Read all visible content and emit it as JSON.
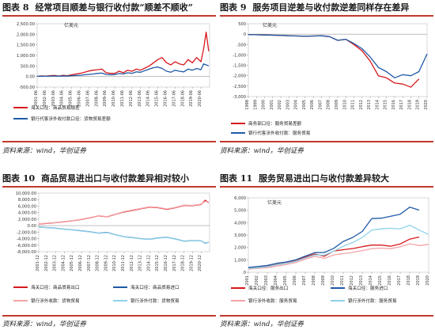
{
  "source_label": "资料来源：wind，华创证券",
  "chart_data": [
    {
      "id": "fig8",
      "type": "line",
      "figure_label": "图表 8",
      "title": "经常项目顺差与银行收付款“顺差不顺收”",
      "unit": "亿美元",
      "ylim": [
        -500,
        2500
      ],
      "yticks": [
        "2,500.00",
        "2,000.00",
        "1,500.00",
        "1,000.00",
        "500.00",
        "0.00",
        "-500.00"
      ],
      "ytick_values": [
        2500,
        2000,
        1500,
        1000,
        500,
        0,
        -500
      ],
      "xticks": [
        "2001-06",
        "2002-06",
        "2003-06",
        "2004-06",
        "2005-06",
        "2006-06",
        "2007-06",
        "2008-06",
        "2009-06",
        "2010-06",
        "2011-06",
        "2012-06",
        "2013-06",
        "2014-06",
        "2015-06",
        "2016-06",
        "2017-06",
        "2018-06",
        "2019-06",
        "2020-06"
      ],
      "x_start": 2001.0,
      "x_end": 2021.0,
      "series": [
        {
          "name": "海关口径：商品贸易顺差",
          "color": "#d7191c",
          "x": [
            2001,
            2001.5,
            2002,
            2002.5,
            2003,
            2003.5,
            2004,
            2004.5,
            2005,
            2005.5,
            2006,
            2006.5,
            2007,
            2007.5,
            2008,
            2008.5,
            2009,
            2009.5,
            2010,
            2010.5,
            2011,
            2011.5,
            2012,
            2012.5,
            2013,
            2013.5,
            2014,
            2014.5,
            2015,
            2015.5,
            2016,
            2016.5,
            2017,
            2017.5,
            2018,
            2018.5,
            2019,
            2019.5,
            2020,
            2020.3,
            2020.6,
            2020.9
          ],
          "values": [
            10,
            30,
            20,
            40,
            50,
            20,
            60,
            40,
            80,
            120,
            150,
            200,
            260,
            300,
            320,
            350,
            180,
            150,
            150,
            250,
            180,
            300,
            250,
            350,
            300,
            400,
            500,
            650,
            800,
            900,
            650,
            550,
            700,
            600,
            550,
            800,
            650,
            900,
            700,
            1300,
            2100,
            1200
          ]
        },
        {
          "name": "银行代客涉外收付款口径：货物贸易差额",
          "color": "#1f5aa6",
          "x": [
            2001,
            2001.5,
            2002,
            2002.5,
            2003,
            2003.5,
            2004,
            2004.5,
            2005,
            2005.5,
            2006,
            2006.5,
            2007,
            2007.5,
            2008,
            2008.5,
            2009,
            2009.5,
            2010,
            2010.5,
            2011,
            2011.5,
            2012,
            2012.5,
            2013,
            2013.5,
            2014,
            2014.5,
            2015,
            2015.5,
            2016,
            2016.5,
            2017,
            2017.5,
            2018,
            2018.5,
            2019,
            2019.5,
            2020,
            2020.3,
            2020.6,
            2020.9
          ],
          "values": [
            5,
            15,
            10,
            20,
            25,
            15,
            30,
            20,
            40,
            50,
            60,
            80,
            100,
            120,
            150,
            160,
            100,
            80,
            90,
            140,
            120,
            180,
            150,
            220,
            200,
            280,
            350,
            420,
            450,
            380,
            250,
            200,
            300,
            250,
            220,
            350,
            300,
            380,
            320,
            600,
            550,
            500
          ]
        }
      ]
    },
    {
      "id": "fig9",
      "type": "line",
      "figure_label": "图表 9",
      "title": "服务项目逆差与收付款逆差同样存在差异",
      "unit": "亿美元",
      "ylim": [
        -3000,
        500
      ],
      "yticks": [
        "500",
        "0",
        "-500",
        "-1,000",
        "-1,500",
        "-2,000",
        "-2,500",
        "-3,000"
      ],
      "ytick_values": [
        500,
        0,
        -500,
        -1000,
        -1500,
        -2000,
        -2500,
        -3000
      ],
      "xticks": [
        "1998",
        "1999",
        "2000",
        "2001",
        "2002",
        "2003",
        "2004",
        "2005",
        "2006",
        "2007",
        "2008",
        "2009",
        "2010",
        "2011",
        "2012",
        "2013",
        "2014",
        "2015",
        "2016",
        "2017",
        "2018",
        "2019",
        "2020"
      ],
      "x_start": 1998,
      "x_end": 2020,
      "series": [
        {
          "name": "商务部口径：服务贸易差额",
          "color": "#d7191c",
          "x": [
            1998,
            1999,
            2000,
            2001,
            2002,
            2003,
            2004,
            2005,
            2006,
            2007,
            2008,
            2009,
            2010,
            2011,
            2012,
            2013,
            2014,
            2015,
            2016,
            2017,
            2018,
            2019
          ],
          "values": [
            -20,
            -30,
            -40,
            -50,
            -60,
            -80,
            -90,
            -100,
            -90,
            -80,
            -120,
            -300,
            -250,
            -500,
            -800,
            -1300,
            -2000,
            -2100,
            -2350,
            -2400,
            -2550,
            -2150
          ]
        },
        {
          "name": "银行代客涉外收付款：服务贸易",
          "color": "#1f5aa6",
          "x": [
            1998,
            1999,
            2000,
            2001,
            2002,
            2003,
            2004,
            2005,
            2006,
            2007,
            2008,
            2009,
            2010,
            2011,
            2012,
            2013,
            2014,
            2015,
            2016,
            2017,
            2018,
            2019,
            2020
          ],
          "values": [
            -20,
            -30,
            -40,
            -50,
            -60,
            -80,
            -90,
            -100,
            -90,
            -80,
            -120,
            -300,
            -250,
            -450,
            -700,
            -1100,
            -1600,
            -1800,
            -2100,
            -1950,
            -2000,
            -1800,
            -950
          ]
        }
      ]
    },
    {
      "id": "fig10",
      "type": "line",
      "figure_label": "图表 10",
      "title": "商品贸易进出口与收付款差异相对较小",
      "ylim": [
        -8000,
        10000
      ],
      "yticks": [
        "10,000.00",
        "8,000.00",
        "6,000.00",
        "4,000.00",
        "2,000.00",
        "0.00",
        "-2,000.00",
        "-4,000.00",
        "-6,000.00",
        "-8,000.00"
      ],
      "ytick_values": [
        10000,
        8000,
        6000,
        4000,
        2000,
        0,
        -2000,
        -4000,
        -6000,
        -8000
      ],
      "xticks": [
        "2001-12",
        "2002-12",
        "2003-12",
        "2004-12",
        "2005-12",
        "2006-12",
        "2007-12",
        "2008-12",
        "2009-12",
        "2010-12",
        "2011-12",
        "2012-12",
        "2013-12",
        "2014-12",
        "2015-12",
        "2016-12",
        "2017-12",
        "2018-12",
        "2019-12",
        "2020-12"
      ],
      "x_start": 2001.0,
      "x_end": 2021.0,
      "series": [
        {
          "name": "海关口径：商品贸易出口",
          "color": "#d7191c",
          "x": [
            2001,
            2002,
            2003,
            2004,
            2005,
            2006,
            2007,
            2008,
            2009,
            2010,
            2011,
            2012,
            2013,
            2014,
            2015,
            2016,
            2017,
            2018,
            2019,
            2020,
            2020.5,
            2020.9
          ],
          "values": [
            500,
            700,
            900,
            1200,
            1500,
            1900,
            2400,
            3000,
            2700,
            3500,
            4200,
            4700,
            5200,
            5700,
            5500,
            5000,
            5500,
            6200,
            6100,
            6500,
            7800,
            7000
          ]
        },
        {
          "name": "海关口径：商品贸易进口",
          "color": "#1f5aa6",
          "x": [
            2001,
            2002,
            2003,
            2004,
            2005,
            2006,
            2007,
            2008,
            2009,
            2010,
            2011,
            2012,
            2013,
            2014,
            2015,
            2016,
            2017,
            2018,
            2019,
            2020,
            2020.5,
            2020.9
          ],
          "values": [
            -400,
            -600,
            -800,
            -1100,
            -1300,
            -1600,
            -1900,
            -2300,
            -2100,
            -2800,
            -3400,
            -3700,
            -4000,
            -4200,
            -3800,
            -3600,
            -4100,
            -4800,
            -4600,
            -4700,
            -5400,
            -5100
          ]
        },
        {
          "name": "银行涉外收款：货物贸易",
          "color": "#f4a3a8",
          "x": [
            2001,
            2002,
            2003,
            2004,
            2005,
            2006,
            2007,
            2008,
            2009,
            2010,
            2011,
            2012,
            2013,
            2014,
            2015,
            2016,
            2017,
            2018,
            2019,
            2020,
            2020.5,
            2020.9
          ],
          "values": [
            550,
            750,
            950,
            1250,
            1550,
            1950,
            2450,
            3050,
            2750,
            3550,
            4300,
            4800,
            5300,
            5800,
            5600,
            5100,
            5600,
            6300,
            6200,
            6600,
            7500,
            7100
          ]
        },
        {
          "name": "银行涉外付款：货物贸易",
          "color": "#8fd3e8",
          "x": [
            2001,
            2002,
            2003,
            2004,
            2005,
            2006,
            2007,
            2008,
            2009,
            2010,
            2011,
            2012,
            2013,
            2014,
            2015,
            2016,
            2017,
            2018,
            2019,
            2020,
            2020.5,
            2020.9
          ],
          "values": [
            -450,
            -650,
            -850,
            -1150,
            -1350,
            -1650,
            -1950,
            -2350,
            -2150,
            -2850,
            -3450,
            -3750,
            -4050,
            -4250,
            -3850,
            -3650,
            -4150,
            -4850,
            -4650,
            -4750,
            -5300,
            -5200
          ]
        }
      ]
    },
    {
      "id": "fig11",
      "type": "line",
      "figure_label": "图表 11",
      "title": "服务贸易进出口与收付款差异较大",
      "unit": "亿美元",
      "ylim": [
        0,
        6000
      ],
      "yticks": [
        "6,000",
        "5,000",
        "4,000",
        "3,000",
        "2,000",
        "1,000",
        "0"
      ],
      "ytick_values": [
        6000,
        5000,
        4000,
        3000,
        2000,
        1000,
        0
      ],
      "xticks": [
        "2001",
        "2002",
        "2003",
        "2004",
        "2005",
        "2006",
        "2007",
        "2008",
        "2009",
        "2010",
        "2011",
        "2012",
        "2013",
        "2014",
        "2015",
        "2016",
        "2017",
        "2018",
        "2019",
        "2020"
      ],
      "x_start": 2001,
      "x_end": 2020,
      "series": [
        {
          "name": "海关口径：服务出口",
          "color": "#d7191c",
          "x": [
            2001,
            2002,
            2003,
            2004,
            2005,
            2006,
            2007,
            2008,
            2009,
            2010,
            2011,
            2012,
            2013,
            2014,
            2015,
            2016,
            2017,
            2018,
            2019
          ],
          "values": [
            330,
            400,
            470,
            620,
            740,
            920,
            1220,
            1470,
            1290,
            1710,
            1820,
            1910,
            2060,
            2190,
            2190,
            2100,
            2280,
            2670,
            2840
          ]
        },
        {
          "name": "海关口径：服务进口",
          "color": "#1f5aa6",
          "x": [
            2001,
            2002,
            2003,
            2004,
            2005,
            2006,
            2007,
            2008,
            2009,
            2010,
            2011,
            2012,
            2013,
            2014,
            2015,
            2016,
            2017,
            2018,
            2019
          ],
          "values": [
            390,
            460,
            550,
            720,
            830,
            1000,
            1300,
            1580,
            1590,
            1930,
            2480,
            2810,
            3290,
            4330,
            4360,
            4520,
            4680,
            5250,
            5010
          ]
        },
        {
          "name": "银行涉外收款：服务贸易",
          "color": "#f4a3a8",
          "x": [
            2001,
            2002,
            2003,
            2004,
            2005,
            2006,
            2007,
            2008,
            2009,
            2010,
            2011,
            2012,
            2013,
            2014,
            2015,
            2016,
            2017,
            2018,
            2019,
            2020
          ],
          "values": [
            250,
            310,
            370,
            500,
            620,
            780,
            1050,
            1280,
            1120,
            1400,
            1500,
            1600,
            1750,
            1900,
            1950,
            1900,
            2050,
            2300,
            2150,
            2250
          ]
        },
        {
          "name": "银行涉外付款：服务贸易",
          "color": "#8fd3e8",
          "x": [
            2001,
            2002,
            2003,
            2004,
            2005,
            2006,
            2007,
            2008,
            2009,
            2010,
            2011,
            2012,
            2013,
            2014,
            2015,
            2016,
            2017,
            2018,
            2019,
            2020
          ],
          "values": [
            300,
            370,
            450,
            600,
            720,
            880,
            1150,
            1400,
            1380,
            1700,
            2100,
            2400,
            2800,
            3400,
            3500,
            3550,
            3500,
            3800,
            3400,
            3050
          ]
        }
      ]
    }
  ]
}
